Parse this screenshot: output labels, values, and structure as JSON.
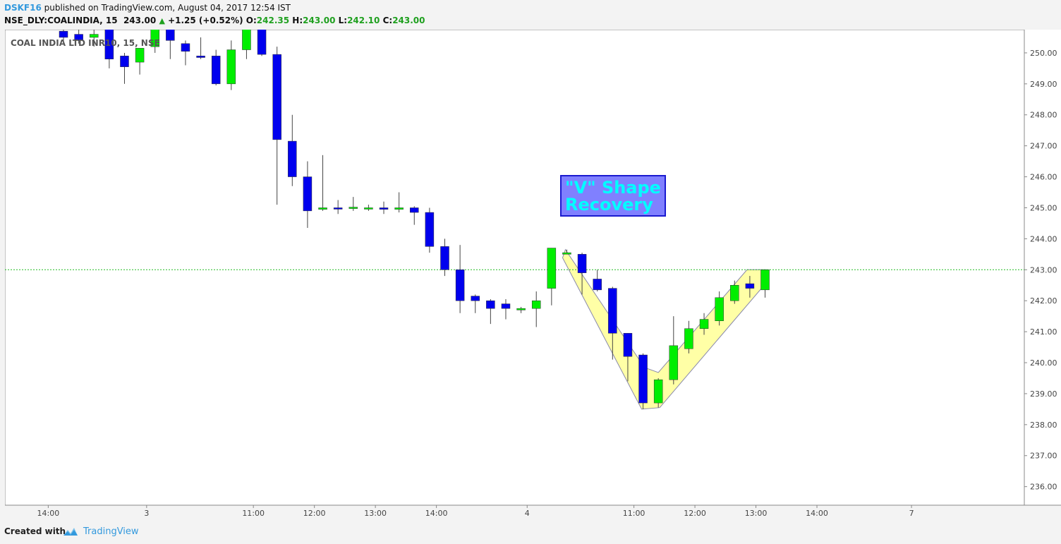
{
  "header": {
    "author": "DSKF16",
    "published": "published on TradingView.com, August 04, 2017 12:54 IST",
    "symbol": "NSE_DLY:COALINDIA, 15",
    "last": "243.00",
    "change": "+1.25 (+0.52%)",
    "o_label": "O:",
    "o": "242.35",
    "h_label": "H:",
    "h": "243.00",
    "l_label": "L:",
    "l": "242.10",
    "c_label": "C:",
    "c": "243.00"
  },
  "footer": {
    "created_with": "Created with",
    "brand": "TradingView"
  },
  "colors": {
    "up": "#00ee00",
    "down": "#0000ee",
    "current_price_line": "#22bb22",
    "highlight_fill": "#ffff88",
    "annotation_bg": "#8080ff",
    "annotation_text": "#00ffff"
  },
  "chart_data": {
    "type": "candlestick",
    "title": "COAL INDIA LTD INR10, 15, NSE",
    "annotation": [
      "\"V\" Shape",
      "Recovery"
    ],
    "current_price": 243.0,
    "y_range": [
      235.4,
      250.75
    ],
    "y_ticks": [
      236,
      237,
      238,
      239,
      240,
      241,
      242,
      243,
      244,
      245,
      246,
      247,
      248,
      249,
      250
    ],
    "x_tick_labels": [
      "13:00",
      "14:00",
      "3",
      "11:00",
      "12:00",
      "13:00",
      "14:00",
      "4",
      "11:00",
      "12:00",
      "13:00",
      "14:00",
      "7"
    ],
    "x_tick_slot": [
      -5,
      -1,
      5.45,
      12.45,
      16.45,
      20.45,
      24.45,
      30.4,
      37.4,
      41.4,
      45.4,
      49.4,
      55.6
    ],
    "candles": [
      {
        "o": 250.7,
        "h": 251.2,
        "l": 250.3,
        "c": 250.5
      },
      {
        "o": 250.6,
        "h": 251.1,
        "l": 250.3,
        "c": 250.4
      },
      {
        "o": 250.5,
        "h": 251.0,
        "l": 250.2,
        "c": 250.6
      },
      {
        "o": 250.8,
        "h": 251.2,
        "l": 249.5,
        "c": 249.8
      },
      {
        "o": 249.9,
        "h": 250.0,
        "l": 249.0,
        "c": 249.55
      },
      {
        "o": 249.7,
        "h": 250.1,
        "l": 249.3,
        "c": 250.15
      },
      {
        "o": 250.2,
        "h": 251.2,
        "l": 250.0,
        "c": 251.0
      },
      {
        "o": 250.9,
        "h": 251.2,
        "l": 249.8,
        "c": 250.4
      },
      {
        "o": 250.3,
        "h": 250.4,
        "l": 249.6,
        "c": 250.05
      },
      {
        "o": 249.9,
        "h": 250.5,
        "l": 249.8,
        "c": 249.85
      },
      {
        "o": 249.9,
        "h": 250.1,
        "l": 248.95,
        "c": 249.0
      },
      {
        "o": 249.0,
        "h": 250.4,
        "l": 248.8,
        "c": 250.1
      },
      {
        "o": 250.1,
        "h": 251.2,
        "l": 249.8,
        "c": 251.0
      },
      {
        "o": 250.9,
        "h": 251.2,
        "l": 249.9,
        "c": 249.95
      },
      {
        "o": 249.95,
        "h": 250.2,
        "l": 245.1,
        "c": 247.2
      },
      {
        "o": 247.15,
        "h": 248.0,
        "l": 245.7,
        "c": 246.0
      },
      {
        "o": 246.0,
        "h": 246.5,
        "l": 244.35,
        "c": 244.9
      },
      {
        "o": 244.95,
        "h": 246.7,
        "l": 244.9,
        "c": 245.0
      },
      {
        "o": 245.0,
        "h": 245.25,
        "l": 244.8,
        "c": 244.98
      },
      {
        "o": 245.0,
        "h": 245.35,
        "l": 244.9,
        "c": 245.02
      },
      {
        "o": 244.98,
        "h": 245.1,
        "l": 244.9,
        "c": 245.0
      },
      {
        "o": 245.0,
        "h": 245.2,
        "l": 244.8,
        "c": 244.95
      },
      {
        "o": 244.95,
        "h": 245.5,
        "l": 244.85,
        "c": 245.0
      },
      {
        "o": 245.0,
        "h": 245.05,
        "l": 244.45,
        "c": 244.85
      },
      {
        "o": 244.85,
        "h": 245.0,
        "l": 243.55,
        "c": 243.75
      },
      {
        "o": 243.75,
        "h": 244.0,
        "l": 242.8,
        "c": 243.0
      },
      {
        "o": 243.0,
        "h": 243.8,
        "l": 241.6,
        "c": 242.0
      },
      {
        "o": 242.15,
        "h": 242.2,
        "l": 241.6,
        "c": 242.0
      },
      {
        "o": 242.0,
        "h": 242.05,
        "l": 241.25,
        "c": 241.75
      },
      {
        "o": 241.9,
        "h": 242.05,
        "l": 241.4,
        "c": 241.75
      },
      {
        "o": 241.7,
        "h": 241.8,
        "l": 241.6,
        "c": 241.75
      },
      {
        "o": 241.75,
        "h": 242.3,
        "l": 241.15,
        "c": 242.0
      },
      {
        "o": 242.4,
        "h": 243.7,
        "l": 241.85,
        "c": 243.7
      },
      {
        "o": 243.5,
        "h": 243.65,
        "l": 243.5,
        "c": 243.55
      },
      {
        "o": 243.5,
        "h": 243.55,
        "l": 242.2,
        "c": 242.9
      },
      {
        "o": 242.7,
        "h": 243.0,
        "l": 242.3,
        "c": 242.35
      },
      {
        "o": 242.4,
        "h": 242.45,
        "l": 240.1,
        "c": 240.95
      },
      {
        "o": 240.95,
        "h": 240.95,
        "l": 239.4,
        "c": 240.2
      },
      {
        "o": 240.25,
        "h": 240.3,
        "l": 238.5,
        "c": 238.7
      },
      {
        "o": 238.7,
        "h": 239.5,
        "l": 238.55,
        "c": 239.45
      },
      {
        "o": 239.45,
        "h": 241.5,
        "l": 239.3,
        "c": 240.55
      },
      {
        "o": 240.45,
        "h": 241.35,
        "l": 240.3,
        "c": 241.1
      },
      {
        "o": 241.1,
        "h": 241.6,
        "l": 240.9,
        "c": 241.4
      },
      {
        "o": 241.35,
        "h": 242.3,
        "l": 241.2,
        "c": 242.1
      },
      {
        "o": 242.0,
        "h": 242.65,
        "l": 241.9,
        "c": 242.5
      },
      {
        "o": 242.55,
        "h": 242.8,
        "l": 242.1,
        "c": 242.4
      },
      {
        "o": 242.35,
        "h": 243.0,
        "l": 242.1,
        "c": 243.0
      }
    ]
  }
}
